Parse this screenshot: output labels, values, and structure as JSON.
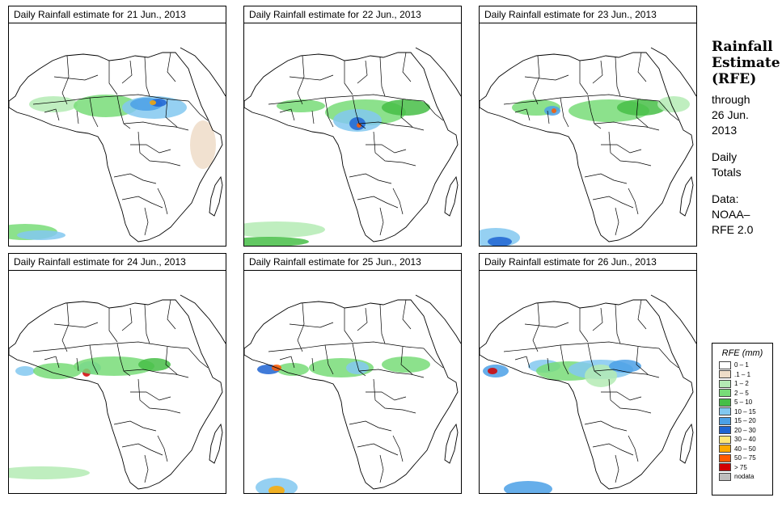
{
  "panels": [
    {
      "prefix": "Daily Rainfall estimate for",
      "date": "21 Jun., 2013"
    },
    {
      "prefix": "Daily Rainfall estimate for",
      "date": "22 Jun., 2013"
    },
    {
      "prefix": "Daily Rainfall estimate for",
      "date": "23 Jun., 2013"
    },
    {
      "prefix": "Daily Rainfall estimate for",
      "date": "24 Jun., 2013"
    },
    {
      "prefix": "Daily Rainfall estimate for",
      "date": "25 Jun., 2013"
    },
    {
      "prefix": "Daily Rainfall estimate for",
      "date": "26 Jun., 2013"
    }
  ],
  "sidebar": {
    "title_line1": "Rainfall",
    "title_line2": "Estimate",
    "title_line3": "(RFE)",
    "through": "through",
    "through_date_1": "26 Jun.",
    "through_date_2": "2013",
    "daily": "Daily",
    "totals": "Totals",
    "data_label": "Data:",
    "source_1": "NOAA–",
    "source_2": "RFE 2.0"
  },
  "legend": {
    "title": "RFE (mm)",
    "entries": [
      {
        "label": "0 – 1",
        "color": "#ffffff"
      },
      {
        "label": ".1 – 1",
        "color": "#eedcc8"
      },
      {
        "label": "1 – 2",
        "color": "#b4ebb4"
      },
      {
        "label": "2 – 5",
        "color": "#78dc78"
      },
      {
        "label": "5 – 10",
        "color": "#46be46"
      },
      {
        "label": "10 – 15",
        "color": "#82c8f0"
      },
      {
        "label": "15 – 20",
        "color": "#4ba0e6"
      },
      {
        "label": "20 – 30",
        "color": "#1e64d2"
      },
      {
        "label": "30 – 40",
        "color": "#ffe678"
      },
      {
        "label": "40 – 50",
        "color": "#ffaa00"
      },
      {
        "label": "50 – 75",
        "color": "#ff5a00"
      },
      {
        "label": "> 75",
        "color": "#d20000"
      },
      {
        "label": "nodata",
        "color": "#bebebe"
      }
    ]
  }
}
